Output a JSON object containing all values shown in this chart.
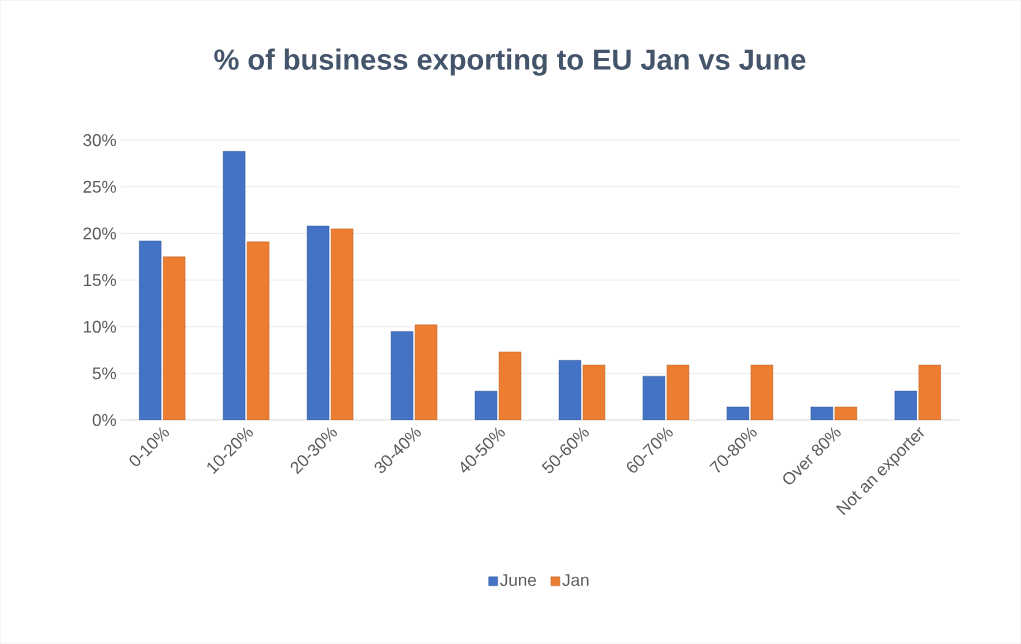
{
  "chart_data": {
    "type": "bar",
    "title": "% of business exporting to EU Jan vs June",
    "categories": [
      "0-10%",
      "10-20%",
      "20-30%",
      "30-40%",
      "40-50%",
      "50-60%",
      "60-70%",
      "70-80%",
      "Over 80%",
      "Not an exporter"
    ],
    "series": [
      {
        "name": "June",
        "color": "#4472c4",
        "values": [
          19.2,
          28.8,
          20.8,
          9.5,
          3.1,
          6.4,
          4.7,
          1.4,
          1.4,
          3.1
        ]
      },
      {
        "name": "Jan",
        "color": "#ed7d31",
        "values": [
          17.5,
          19.1,
          20.5,
          10.2,
          7.3,
          5.9,
          5.9,
          5.9,
          1.4,
          5.9
        ]
      }
    ],
    "ylim": [
      0,
      30
    ],
    "yticks": [
      {
        "value": 0,
        "label": "0%"
      },
      {
        "value": 5,
        "label": "5%"
      },
      {
        "value": 10,
        "label": "10%"
      },
      {
        "value": 15,
        "label": "15%"
      },
      {
        "value": 20,
        "label": "20%"
      },
      {
        "value": 25,
        "label": "25%"
      },
      {
        "value": 30,
        "label": "30%"
      }
    ],
    "grid": "y",
    "legend": "bottom"
  }
}
